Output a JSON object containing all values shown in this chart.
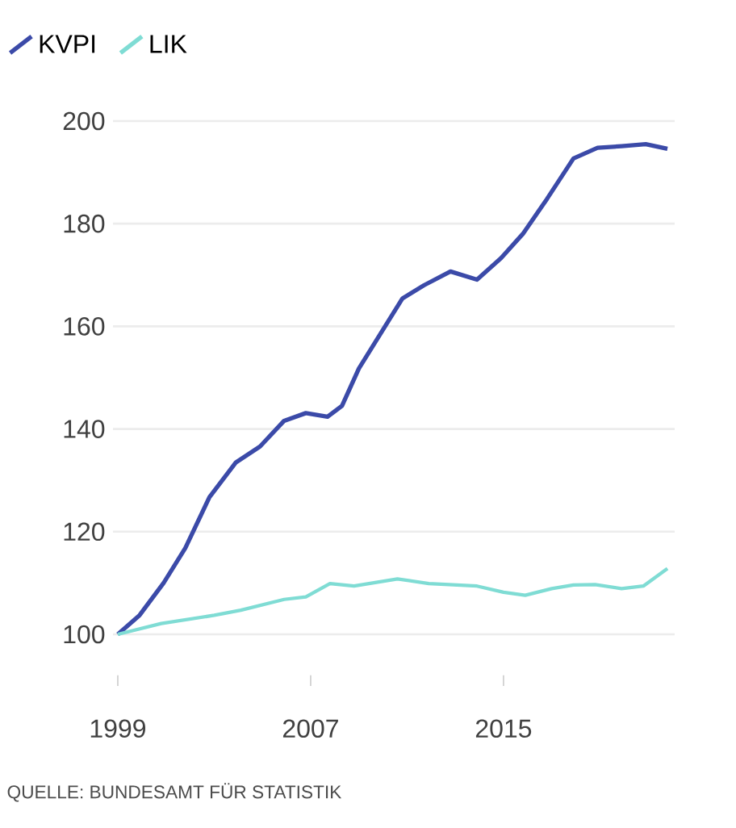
{
  "chart_data": {
    "type": "line",
    "series": [
      {
        "name": "KVPI",
        "color": "#3b4aa8",
        "x": [
          1999,
          1999.9,
          2000.9,
          2001.8,
          2002.8,
          2003.9,
          2004.9,
          2005.9,
          2006.8,
          2007.7,
          2008.3,
          2009,
          2009.9,
          2010.8,
          2011.7,
          2012.8,
          2013.9,
          2014.9,
          2015.8,
          2016.8,
          2017.9,
          2018.9,
          2019.9,
          2020.9,
          2021.8
        ],
        "values": [
          100,
          103.7,
          110,
          116.8,
          126.7,
          133.5,
          136.6,
          141.6,
          143.1,
          142.4,
          144.5,
          151.8,
          158.6,
          165.4,
          168,
          170.7,
          169.1,
          173.3,
          178,
          184.8,
          192.7,
          194.8,
          195.1,
          195.5,
          194.6
        ]
      },
      {
        "name": "LIK",
        "color": "#7fdcd4",
        "x": [
          1999,
          2000.8,
          2003,
          2004.1,
          2005.9,
          2006.8,
          2007.8,
          2008.8,
          2010.6,
          2011.9,
          2013.9,
          2015,
          2015.9,
          2017,
          2017.9,
          2018.8,
          2019.9,
          2020.8,
          2021.8
        ],
        "values": [
          100,
          102.1,
          103.7,
          104.7,
          106.8,
          107.3,
          109.9,
          109.4,
          110.8,
          109.9,
          109.4,
          108.2,
          107.6,
          108.9,
          109.6,
          109.7,
          108.9,
          109.4,
          112.8
        ]
      }
    ],
    "xlim": [
      1998.8,
      2022.1
    ],
    "xticks": [
      1999,
      2007,
      2015
    ],
    "ylim": [
      100,
      200
    ],
    "yticks": [
      100,
      120,
      140,
      160,
      180,
      200
    ],
    "grid": "y",
    "legend": "top left",
    "marker": "none",
    "line_style": "solid",
    "annotations": [
      "QUELLE: BUNDESAMT FÜR STATISTIK"
    ]
  }
}
